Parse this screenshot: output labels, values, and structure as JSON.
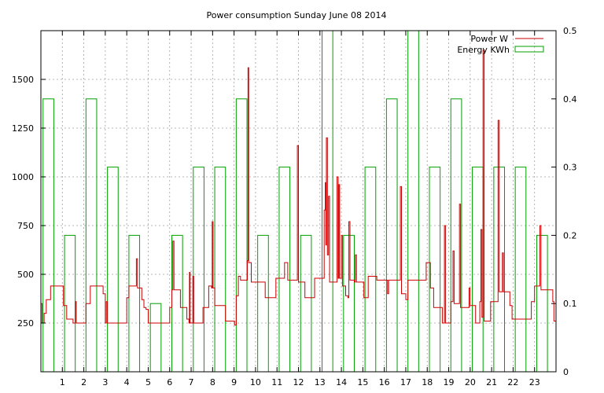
{
  "chart_data": {
    "type": "line",
    "title": "Power consumption Sunday June 08 2014",
    "grid": true,
    "legend_placement": "top-right",
    "x_ticks": [
      "1",
      "2",
      "3",
      "4",
      "5",
      "6",
      "7",
      "8",
      "9",
      "10",
      "11",
      "12",
      "13",
      "14",
      "15",
      "16",
      "17",
      "18",
      "19",
      "20",
      "21",
      "22",
      "23"
    ],
    "xlim": [
      0,
      24
    ],
    "y_left_ticks": [
      "250",
      "500",
      "750",
      "1000",
      "1250",
      "1500"
    ],
    "ylim_left": [
      0,
      1750
    ],
    "y_right_ticks": [
      "0",
      "0.1",
      "0.2",
      "0.3",
      "0.4",
      "0.5"
    ],
    "ylim_right": [
      0,
      0.5
    ],
    "series": [
      {
        "name": "Power W",
        "color": "#cc0000",
        "axis": "left",
        "points": [
          [
            0.0,
            350
          ],
          [
            0.05,
            250
          ],
          [
            0.15,
            300
          ],
          [
            0.25,
            370
          ],
          [
            0.45,
            440
          ],
          [
            0.95,
            440
          ],
          [
            1.05,
            340
          ],
          [
            1.2,
            270
          ],
          [
            1.5,
            250
          ],
          [
            1.6,
            360
          ],
          [
            1.65,
            250
          ],
          [
            2.0,
            250
          ],
          [
            2.1,
            350
          ],
          [
            2.3,
            440
          ],
          [
            2.85,
            440
          ],
          [
            2.9,
            400
          ],
          [
            3.0,
            250
          ],
          [
            3.05,
            360
          ],
          [
            3.1,
            250
          ],
          [
            3.9,
            250
          ],
          [
            4.0,
            380
          ],
          [
            4.1,
            440
          ],
          [
            4.4,
            440
          ],
          [
            4.45,
            580
          ],
          [
            4.5,
            430
          ],
          [
            4.65,
            430
          ],
          [
            4.7,
            370
          ],
          [
            4.8,
            330
          ],
          [
            4.9,
            320
          ],
          [
            5.0,
            250
          ],
          [
            5.9,
            250
          ],
          [
            6.0,
            330
          ],
          [
            6.1,
            420
          ],
          [
            6.15,
            670
          ],
          [
            6.2,
            420
          ],
          [
            6.4,
            420
          ],
          [
            6.5,
            330
          ],
          [
            6.75,
            330
          ],
          [
            6.8,
            270
          ],
          [
            6.9,
            250
          ],
          [
            6.92,
            510
          ],
          [
            6.95,
            250
          ],
          [
            7.05,
            250
          ],
          [
            7.08,
            490
          ],
          [
            7.12,
            250
          ],
          [
            7.5,
            250
          ],
          [
            7.55,
            330
          ],
          [
            7.8,
            330
          ],
          [
            7.82,
            440
          ],
          [
            7.95,
            430
          ],
          [
            7.98,
            770
          ],
          [
            8.02,
            430
          ],
          [
            8.1,
            340
          ],
          [
            8.55,
            340
          ],
          [
            8.6,
            260
          ],
          [
            9.0,
            260
          ],
          [
            9.02,
            240
          ],
          [
            9.1,
            390
          ],
          [
            9.2,
            490
          ],
          [
            9.3,
            470
          ],
          [
            9.6,
            470
          ],
          [
            9.62,
            570
          ],
          [
            9.65,
            1560
          ],
          [
            9.68,
            560
          ],
          [
            9.8,
            460
          ],
          [
            10.4,
            460
          ],
          [
            10.45,
            380
          ],
          [
            10.9,
            380
          ],
          [
            10.95,
            480
          ],
          [
            11.3,
            480
          ],
          [
            11.35,
            560
          ],
          [
            11.45,
            560
          ],
          [
            11.5,
            470
          ],
          [
            11.9,
            470
          ],
          [
            11.95,
            1160
          ],
          [
            12.0,
            460
          ],
          [
            12.2,
            460
          ],
          [
            12.3,
            380
          ],
          [
            12.7,
            380
          ],
          [
            12.75,
            480
          ],
          [
            13.15,
            480
          ],
          [
            13.2,
            830
          ],
          [
            13.25,
            970
          ],
          [
            13.28,
            650
          ],
          [
            13.3,
            1200
          ],
          [
            13.35,
            600
          ],
          [
            13.4,
            900
          ],
          [
            13.45,
            460
          ],
          [
            13.75,
            460
          ],
          [
            13.8,
            1000
          ],
          [
            13.85,
            480
          ],
          [
            13.88,
            960
          ],
          [
            13.92,
            480
          ],
          [
            14.0,
            700
          ],
          [
            14.05,
            440
          ],
          [
            14.2,
            390
          ],
          [
            14.3,
            380
          ],
          [
            14.35,
            770
          ],
          [
            14.4,
            470
          ],
          [
            14.6,
            460
          ],
          [
            14.65,
            600
          ],
          [
            14.7,
            460
          ],
          [
            15.0,
            460
          ],
          [
            15.05,
            380
          ],
          [
            15.2,
            380
          ],
          [
            15.25,
            490
          ],
          [
            15.6,
            490
          ],
          [
            15.65,
            470
          ],
          [
            16.1,
            470
          ],
          [
            16.15,
            400
          ],
          [
            16.2,
            470
          ],
          [
            16.7,
            470
          ],
          [
            16.75,
            950
          ],
          [
            16.8,
            400
          ],
          [
            17.0,
            370
          ],
          [
            17.1,
            470
          ],
          [
            17.9,
            470
          ],
          [
            17.95,
            560
          ],
          [
            18.1,
            560
          ],
          [
            18.15,
            430
          ],
          [
            18.3,
            330
          ],
          [
            18.6,
            330
          ],
          [
            18.7,
            250
          ],
          [
            18.8,
            750
          ],
          [
            18.85,
            250
          ],
          [
            19.0,
            250
          ],
          [
            19.1,
            360
          ],
          [
            19.2,
            620
          ],
          [
            19.25,
            350
          ],
          [
            19.45,
            350
          ],
          [
            19.5,
            860
          ],
          [
            19.55,
            330
          ],
          [
            19.9,
            330
          ],
          [
            19.95,
            430
          ],
          [
            20.0,
            340
          ],
          [
            20.2,
            340
          ],
          [
            20.25,
            250
          ],
          [
            20.4,
            250
          ],
          [
            20.45,
            360
          ],
          [
            20.5,
            730
          ],
          [
            20.55,
            280
          ],
          [
            20.6,
            1650
          ],
          [
            20.65,
            260
          ],
          [
            20.9,
            260
          ],
          [
            20.95,
            360
          ],
          [
            21.2,
            360
          ],
          [
            21.3,
            1290
          ],
          [
            21.35,
            410
          ],
          [
            21.45,
            410
          ],
          [
            21.5,
            610
          ],
          [
            21.55,
            410
          ],
          [
            21.8,
            410
          ],
          [
            21.85,
            340
          ],
          [
            21.95,
            270
          ],
          [
            22.8,
            270
          ],
          [
            22.85,
            360
          ],
          [
            23.0,
            440
          ],
          [
            23.2,
            440
          ],
          [
            23.25,
            750
          ],
          [
            23.3,
            420
          ],
          [
            23.75,
            420
          ],
          [
            23.85,
            360
          ],
          [
            23.9,
            260
          ],
          [
            24.0,
            260
          ]
        ]
      },
      {
        "name": "Energy KWh",
        "color": "#00a000",
        "axis": "right",
        "bars": [
          [
            0.0,
            0.4
          ],
          [
            1.0,
            0.2
          ],
          [
            2.0,
            0.4
          ],
          [
            3.0,
            0.3
          ],
          [
            4.0,
            0.2
          ],
          [
            5.0,
            0.1
          ],
          [
            6.0,
            0.2
          ],
          [
            7.0,
            0.3
          ],
          [
            8.0,
            0.3
          ],
          [
            9.0,
            0.4
          ],
          [
            10.0,
            0.2
          ],
          [
            11.0,
            0.3
          ],
          [
            12.0,
            0.2
          ],
          [
            13.0,
            0.5
          ],
          [
            14.0,
            0.2
          ],
          [
            15.0,
            0.3
          ],
          [
            16.0,
            0.4
          ],
          [
            17.0,
            0.5
          ],
          [
            18.0,
            0.3
          ],
          [
            19.0,
            0.4
          ],
          [
            20.0,
            0.3
          ],
          [
            21.0,
            0.3
          ],
          [
            22.0,
            0.3
          ],
          [
            23.0,
            0.2
          ]
        ]
      }
    ]
  }
}
